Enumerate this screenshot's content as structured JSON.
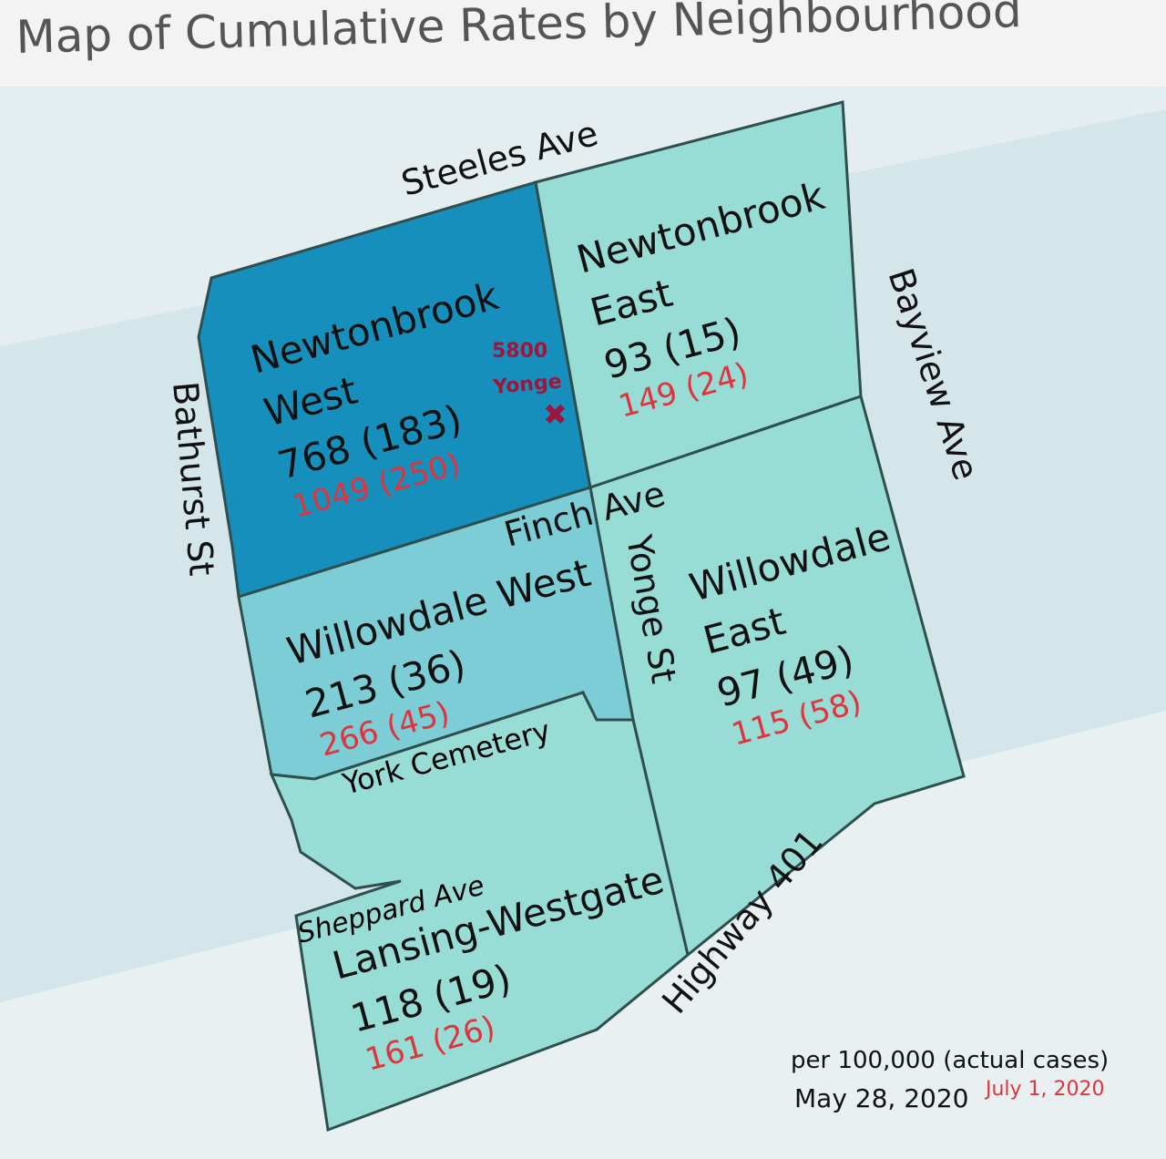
{
  "title": "Map of Cumulative Rates by Neighbourhood",
  "roads": {
    "steeles": "Steeles Ave",
    "bayview": "Bayview Ave",
    "bathurst": "Bathurst St",
    "finch": "Finch Ave",
    "yonge": "Yonge St",
    "sheppard": "Sheppard Ave",
    "highway": "Highway 401"
  },
  "landmark": "York Cemetery",
  "marker": {
    "lines": [
      "5800",
      "Yonge"
    ]
  },
  "neighbourhoods": [
    {
      "name_lines": [
        "Newtonbrook",
        "West"
      ],
      "may28": "768 (183)",
      "july1": "1049 (250)"
    },
    {
      "name_lines": [
        "Newtonbrook",
        "East"
      ],
      "may28": "93 (15)",
      "july1": "149 (24)"
    },
    {
      "name_lines": [
        "Willowdale West"
      ],
      "may28": "213 (36)",
      "july1": "266 (45)"
    },
    {
      "name_lines": [
        "Willowdale",
        "East"
      ],
      "may28": "97 (49)",
      "july1": "115 (58)"
    },
    {
      "name_lines": [
        "Lansing-Westgate"
      ],
      "may28": "118 (19)",
      "july1": "161 (26)"
    }
  ],
  "legend": {
    "units": "per 100,000 (actual cases)",
    "date1": "May 28, 2020",
    "date2": "July 1, 2020"
  }
}
